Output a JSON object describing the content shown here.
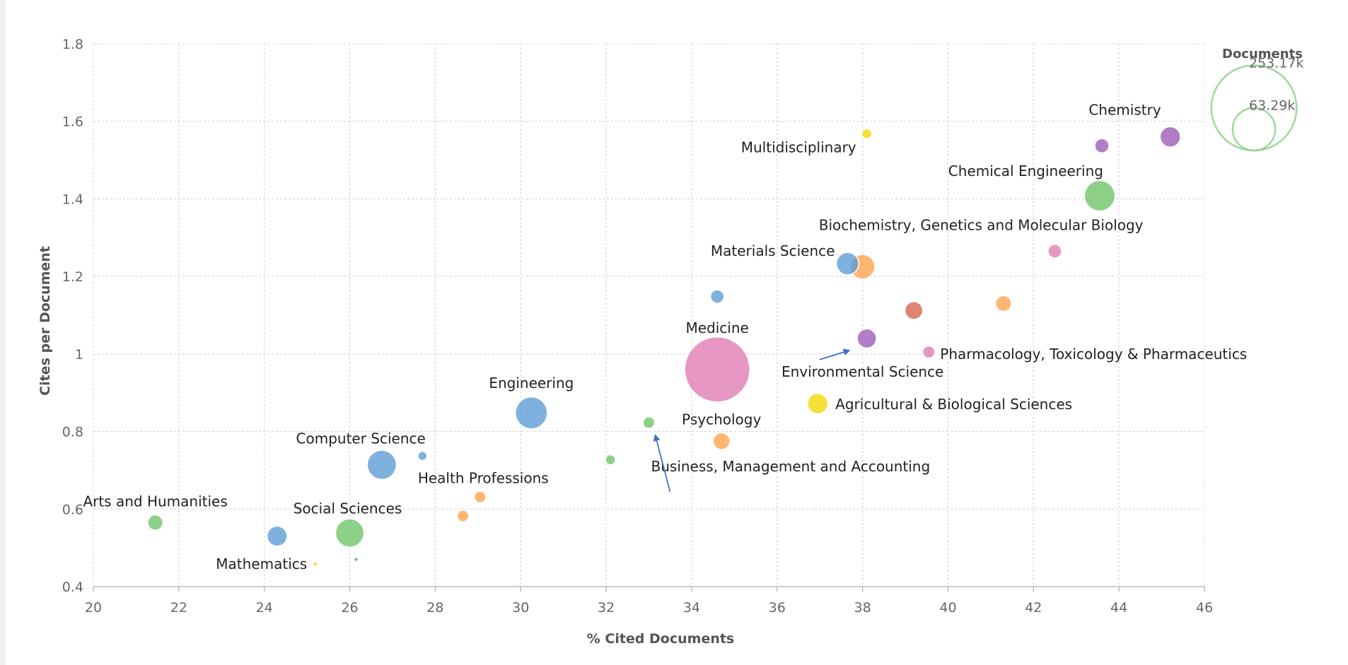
{
  "chart_data": {
    "type": "scatter",
    "subtype": "bubble",
    "xlabel": "% Cited Documents",
    "ylabel": "Cites per Document",
    "xlim": [
      20,
      46
    ],
    "ylim": [
      0.4,
      1.8
    ],
    "xticks": [
      "20",
      "22",
      "24",
      "26",
      "28",
      "30",
      "32",
      "34",
      "36",
      "38",
      "40",
      "42",
      "44",
      "46"
    ],
    "yticks": [
      "0.4",
      "0.6",
      "0.8",
      "1",
      "1.2",
      "1.4",
      "1.6",
      "1.8"
    ],
    "grid": true,
    "size_legend": {
      "title": "Documents",
      "values": [
        "253.17k",
        "63.29k"
      ],
      "color": "#8fd18c"
    },
    "points": [
      {
        "label": "Arts and Humanities",
        "x": 21.45,
        "y": 0.565,
        "size": 14000,
        "color": "#6cc465"
      },
      {
        "label": "Mathematics",
        "x": 25.2,
        "y": 0.458,
        "size": 900,
        "color": "#f2d600"
      },
      {
        "label": "",
        "x": 24.3,
        "y": 0.53,
        "size": 24000,
        "color": "#5b9bd5"
      },
      {
        "label": "Social Sciences",
        "x": 26.0,
        "y": 0.538,
        "size": 48000,
        "color": "#6cc465"
      },
      {
        "label": "",
        "x": 26.15,
        "y": 0.47,
        "size": 400,
        "color": "#4fa86a"
      },
      {
        "label": "Computer Science",
        "x": 26.75,
        "y": 0.714,
        "size": 51000,
        "color": "#5b9bd5"
      },
      {
        "label": "",
        "x": 27.7,
        "y": 0.737,
        "size": 5000,
        "color": "#5b9bd5"
      },
      {
        "label": "Health Professions",
        "x": 29.05,
        "y": 0.631,
        "size": 8000,
        "color": "#ffa24d"
      },
      {
        "label": "",
        "x": 28.65,
        "y": 0.582,
        "size": 8000,
        "color": "#ffa24d"
      },
      {
        "label": "Engineering",
        "x": 30.25,
        "y": 0.848,
        "size": 61000,
        "color": "#5b9bd5"
      },
      {
        "label": "",
        "x": 32.1,
        "y": 0.727,
        "size": 6000,
        "color": "#6cc465"
      },
      {
        "label": "Business, Management and Accounting",
        "x": 33.0,
        "y": 0.823,
        "size": 8000,
        "color": "#6cc465"
      },
      {
        "label": "Psychology",
        "x": 34.7,
        "y": 0.775,
        "size": 17000,
        "color": "#ffa24d"
      },
      {
        "label": "",
        "x": 34.6,
        "y": 1.148,
        "size": 11000,
        "color": "#5b9bd5"
      },
      {
        "label": "Medicine",
        "x": 34.6,
        "y": 0.96,
        "size": 253170,
        "color": "#e07ab3"
      },
      {
        "label": "Agricultural & Biological Sciences",
        "x": 36.95,
        "y": 0.872,
        "size": 25000,
        "color": "#f2d600"
      },
      {
        "label": "Materials Science",
        "x": 37.65,
        "y": 1.233,
        "size": 30000,
        "color": "#5b9bd5"
      },
      {
        "label": "",
        "x": 38.0,
        "y": 1.225,
        "size": 36000,
        "color": "#ffa24d"
      },
      {
        "label": "Environmental Science",
        "x": 38.1,
        "y": 1.04,
        "size": 22000,
        "color": "#9b59b6"
      },
      {
        "label": "Multidisciplinary",
        "x": 38.1,
        "y": 1.568,
        "size": 6000,
        "color": "#f2d600"
      },
      {
        "label": "",
        "x": 39.2,
        "y": 1.112,
        "size": 19000,
        "color": "#d7624a"
      },
      {
        "label": "Pharmacology, Toxicology & Pharmaceutics",
        "x": 39.55,
        "y": 1.005,
        "size": 9000,
        "color": "#e07ab3"
      },
      {
        "label": "",
        "x": 41.3,
        "y": 1.13,
        "size": 15000,
        "color": "#ffa24d"
      },
      {
        "label": "Biochemistry, Genetics and Molecular Biology",
        "x": 42.5,
        "y": 1.265,
        "size": 11000,
        "color": "#e07ab3"
      },
      {
        "label": "Chemical Engineering",
        "x": 43.55,
        "y": 1.408,
        "size": 56000,
        "color": "#6cc465"
      },
      {
        "label": "",
        "x": 43.6,
        "y": 1.537,
        "size": 12000,
        "color": "#9b59b6"
      },
      {
        "label": "Chemistry",
        "x": 45.2,
        "y": 1.56,
        "size": 25000,
        "color": "#9b59b6"
      }
    ]
  }
}
